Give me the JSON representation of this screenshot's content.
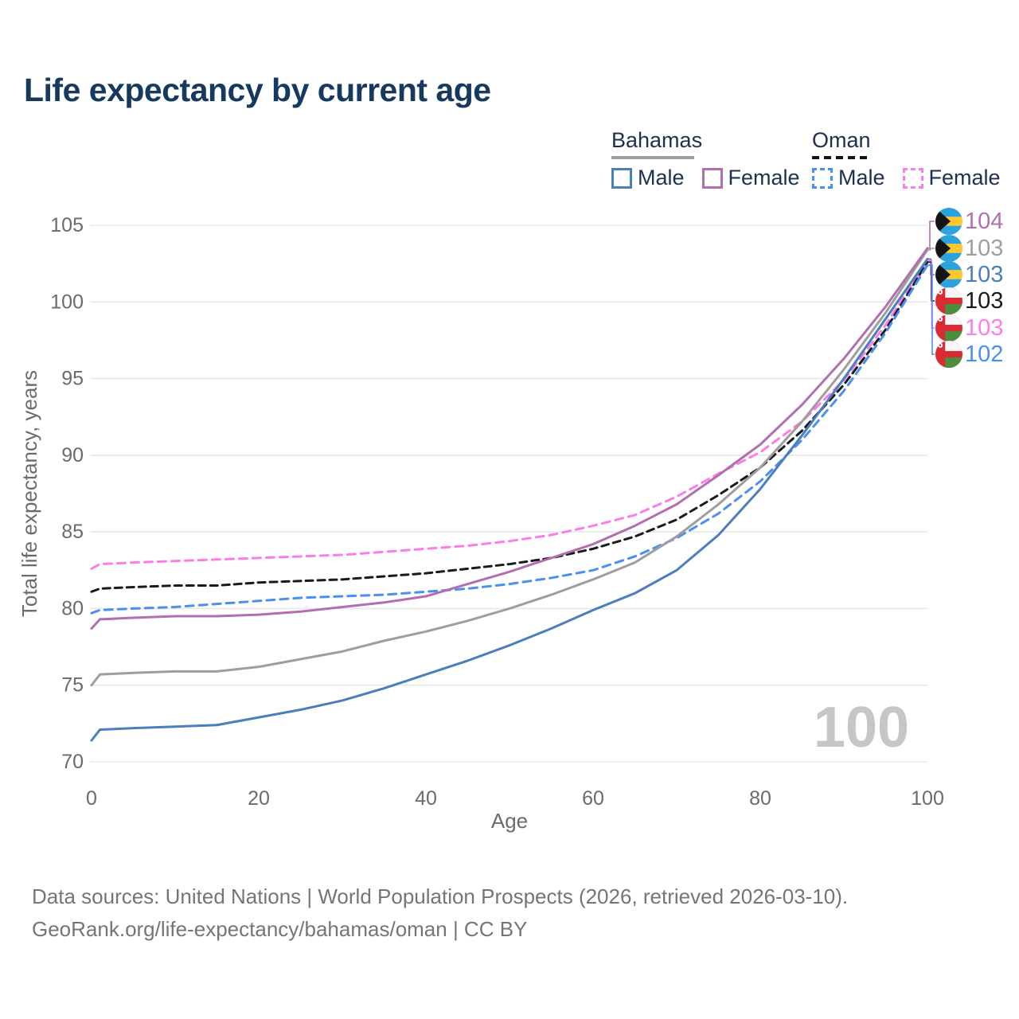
{
  "header": {
    "title": "Life expectancy by current age"
  },
  "legend": {
    "groups": [
      {
        "label": "Bahamas",
        "line_style": "solid",
        "underline_color": "#9e9e9e",
        "items": [
          {
            "label": "Male",
            "color": "#4a7ebc",
            "style": "solid"
          },
          {
            "label": "Female",
            "color": "#b26fb0",
            "style": "solid"
          }
        ]
      },
      {
        "label": "Oman",
        "line_style": "dashed",
        "underline_color": "#141414",
        "items": [
          {
            "label": "Male",
            "color": "#4a8ff2",
            "style": "dashed"
          },
          {
            "label": "Female",
            "color": "#fc7de6",
            "style": "dashed"
          }
        ]
      }
    ]
  },
  "chart_data": {
    "type": "line",
    "title": "Life expectancy by current age",
    "xlabel": "Age",
    "ylabel": "Total life expectancy, years",
    "xlim": [
      0,
      100
    ],
    "ylim": [
      70,
      105
    ],
    "xticks": [
      0,
      20,
      40,
      60,
      80,
      100
    ],
    "yticks": [
      70,
      75,
      80,
      85,
      90,
      95,
      100,
      105
    ],
    "grid": "horizontal-only",
    "legend_position": "top-right",
    "watermark": "100",
    "x": [
      0,
      1,
      5,
      10,
      15,
      20,
      25,
      30,
      35,
      40,
      45,
      50,
      55,
      60,
      65,
      70,
      75,
      80,
      85,
      90,
      95,
      100
    ],
    "series": [
      {
        "name": "Oman Female",
        "country": "Oman",
        "sex": "Female",
        "color": "#fc7de6",
        "dash": "10 7",
        "flag": "oman",
        "end_label": "103",
        "values": [
          82.6,
          82.9,
          83.0,
          83.1,
          83.2,
          83.3,
          83.4,
          83.5,
          83.7,
          83.9,
          84.1,
          84.4,
          84.8,
          85.4,
          86.1,
          87.3,
          88.8,
          90.2,
          92.2,
          94.9,
          98.5,
          102.7
        ]
      },
      {
        "name": "Oman",
        "country": "Oman",
        "sex": "Both",
        "color": "#1a1a1a",
        "dash": "9 6",
        "flag": "oman",
        "end_label": "103",
        "values": [
          81.1,
          81.3,
          81.4,
          81.5,
          81.5,
          81.7,
          81.8,
          81.9,
          82.1,
          82.3,
          82.6,
          82.9,
          83.3,
          83.9,
          84.7,
          85.8,
          87.4,
          89.2,
          91.6,
          94.6,
          98.2,
          102.6
        ]
      },
      {
        "name": "Oman Male",
        "country": "Oman",
        "sex": "Male",
        "color": "#4a8ff2",
        "dash": "10 7",
        "flag": "oman",
        "end_label": "102",
        "values": [
          79.7,
          79.9,
          80.0,
          80.1,
          80.3,
          80.5,
          80.7,
          80.8,
          80.9,
          81.1,
          81.3,
          81.6,
          82.0,
          82.5,
          83.4,
          84.6,
          86.2,
          88.3,
          91.0,
          94.2,
          98.0,
          102.4
        ]
      },
      {
        "name": "Bahamas",
        "country": "Bahamas",
        "sex": "Both",
        "color": "#9e9e9e",
        "dash": "",
        "flag": "bahamas",
        "end_label": "103",
        "values": [
          75.0,
          75.7,
          75.8,
          75.9,
          75.9,
          76.2,
          76.7,
          77.2,
          77.9,
          78.5,
          79.2,
          80.0,
          80.9,
          81.9,
          83.0,
          84.7,
          86.8,
          89.2,
          92.2,
          95.6,
          99.3,
          103.4
        ]
      },
      {
        "name": "Bahamas Male",
        "country": "Bahamas",
        "sex": "Male",
        "color": "#4a7ebc",
        "dash": "",
        "flag": "bahamas",
        "end_label": "103",
        "values": [
          71.4,
          72.1,
          72.2,
          72.3,
          72.4,
          72.9,
          73.4,
          74.0,
          74.8,
          75.7,
          76.6,
          77.6,
          78.7,
          79.9,
          81.0,
          82.5,
          84.8,
          87.8,
          91.3,
          95.0,
          98.9,
          102.8
        ]
      },
      {
        "name": "Bahamas Female",
        "country": "Bahamas",
        "sex": "Female",
        "color": "#b26fb0",
        "dash": "",
        "flag": "bahamas",
        "end_label": "104",
        "values": [
          78.7,
          79.3,
          79.4,
          79.5,
          79.5,
          79.6,
          79.8,
          80.1,
          80.4,
          80.8,
          81.6,
          82.4,
          83.3,
          84.2,
          85.4,
          86.8,
          88.7,
          90.7,
          93.3,
          96.3,
          99.7,
          103.5
        ]
      }
    ],
    "end_labels_order": [
      "Bahamas Female",
      "Bahamas",
      "Bahamas Male",
      "Oman",
      "Oman Female",
      "Oman Male"
    ]
  },
  "footer": {
    "line1": "Data sources: United Nations | World Population Prospects (2026, retrieved 2026-03-10).",
    "line2": "GeoRank.org/life-expectancy/bahamas/oman | CC BY"
  }
}
